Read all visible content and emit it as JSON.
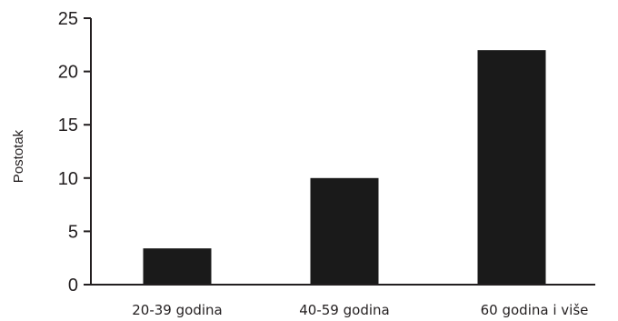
{
  "chart_data": {
    "type": "bar",
    "categories": [
      "20-39 godina",
      "40-59 godina",
      "60 godina i više"
    ],
    "values": [
      3.4,
      10,
      22
    ],
    "ylabel": "Postotak",
    "ylim": [
      0,
      25
    ],
    "yticks": [
      0,
      5,
      10,
      15,
      20,
      25
    ],
    "grid": false,
    "bar_color": "#1a1a1a",
    "axis_color": "#231f20"
  }
}
